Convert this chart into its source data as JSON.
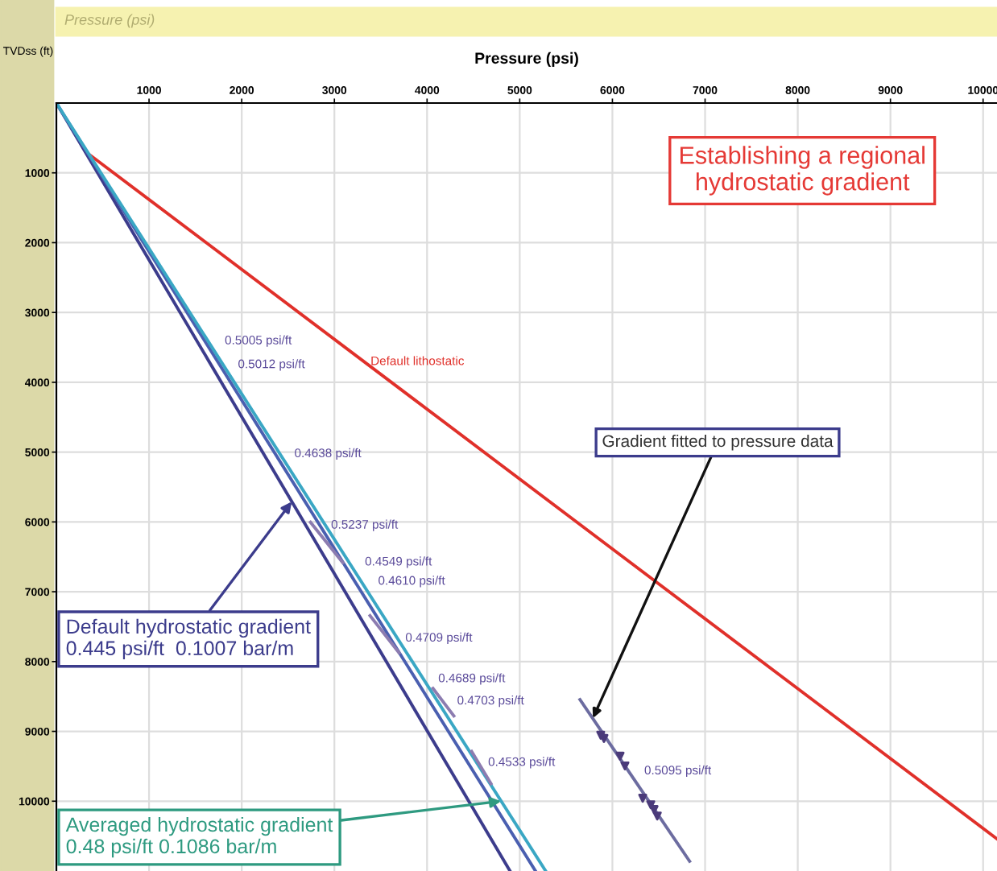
{
  "chart_data": {
    "type": "line",
    "title": "Pressure (psi)",
    "xlabel": "Pressure (psi)",
    "ylabel": "TVDss (ft)",
    "xlim": [
      0,
      10150
    ],
    "ylim": [
      11000,
      0
    ],
    "xticks": [
      1000,
      2000,
      3000,
      4000,
      5000,
      6000,
      7000,
      8000,
      9000,
      10000
    ],
    "yticks": [
      1000,
      2000,
      3000,
      4000,
      5000,
      6000,
      7000,
      8000,
      9000,
      10000
    ],
    "grid": true,
    "line_style": "solid",
    "series": [
      {
        "color": "#e0302a",
        "x": [
          338,
          10150
        ],
        "values": [
          720,
          10540
        ]
      },
      {
        "color": "#3c3c8c",
        "x": [
          0,
          4895
        ],
        "values": [
          0,
          11000
        ]
      },
      {
        "color": "#4a5fb0",
        "x": [
          0,
          5170
        ],
        "values": [
          0,
          11000
        ]
      },
      {
        "color": "#3aa7c4",
        "x": [
          0,
          5280
        ],
        "values": [
          0,
          11000
        ]
      },
      {
        "color": "#8c7cb0",
        "x": [
          2742,
          3091
        ],
        "values": [
          6005,
          6583
        ]
      },
      {
        "color": "#8c7cb0",
        "x": [
          3385,
          3698
        ],
        "values": [
          7343,
          7875
        ]
      },
      {
        "color": "#8c7cb0",
        "x": [
          4064,
          4289
        ],
        "values": [
          8384,
          8778
        ]
      },
      {
        "color": "#8c7cb0",
        "x": [
          4481,
          4690
        ],
        "values": [
          9287,
          9750
        ]
      },
      {
        "color": "#6c6ca0",
        "x": [
          5650,
          6833
        ],
        "values": [
          8545,
          10860
        ]
      },
      {
        "type": "scatter",
        "marker": "triangle",
        "color": "#4b3b7a",
        "x": [
          5874,
          5909,
          6083,
          6135,
          6327,
          6414,
          6449,
          6484
        ],
        "values": [
          9056,
          9102,
          9356,
          9495,
          9958,
          10051,
          10120,
          10213
        ]
      }
    ],
    "annotations": [
      "Establishing a regional\nhydrostatic gradient",
      {
        "text": "Gradient fitted to pressure data",
        "x": 5790,
        "y": 8810
      },
      {
        "text": "Default hydrostatic gradient\n0.445 psi/ft  0.1007 bar/m",
        "x": 2540,
        "y": 5710
      },
      {
        "text": "Averaged hydrostatic gradient\n0.48 psi/ft 0.1086 bar/m",
        "x": 4800,
        "y": 10000
      },
      "Default lithostatic",
      "0.5005 psi/ft",
      "0.5012 psi/ft",
      "0.4638 psi/ft",
      "0.5237 psi/ft",
      "0.4549 psi/ft",
      "0.4610 psi/ft",
      "0.4709 psi/ft",
      "0.4689 psi/ft",
      "0.4703 psi/ft",
      "0.4533 psi/ft",
      "0.5095 psi/ft"
    ]
  }
}
